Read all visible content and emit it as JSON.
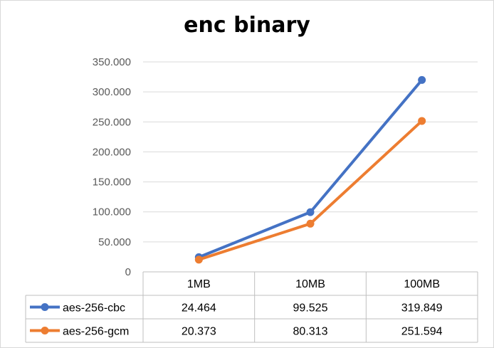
{
  "chart_data": {
    "type": "line",
    "title": "enc binary",
    "xlabel": "",
    "ylabel": "",
    "categories": [
      "1MB",
      "10MB",
      "100MB"
    ],
    "ylim": [
      0,
      350
    ],
    "y_ticks": [
      "0",
      "50.000",
      "100.000",
      "150.000",
      "200.000",
      "250.000",
      "300.000",
      "350.000"
    ],
    "grid": true,
    "legend": "data-table",
    "series": [
      {
        "name": "aes-256-cbc",
        "color": "#4472c4",
        "values": [
          24.464,
          99.525,
          319.849
        ],
        "labels": [
          "24.464",
          "99.525",
          "319.849"
        ]
      },
      {
        "name": "aes-256-gcm",
        "color": "#ed7d31",
        "values": [
          20.373,
          80.313,
          251.594
        ],
        "labels": [
          "20.373",
          "80.313",
          "251.594"
        ]
      }
    ]
  }
}
